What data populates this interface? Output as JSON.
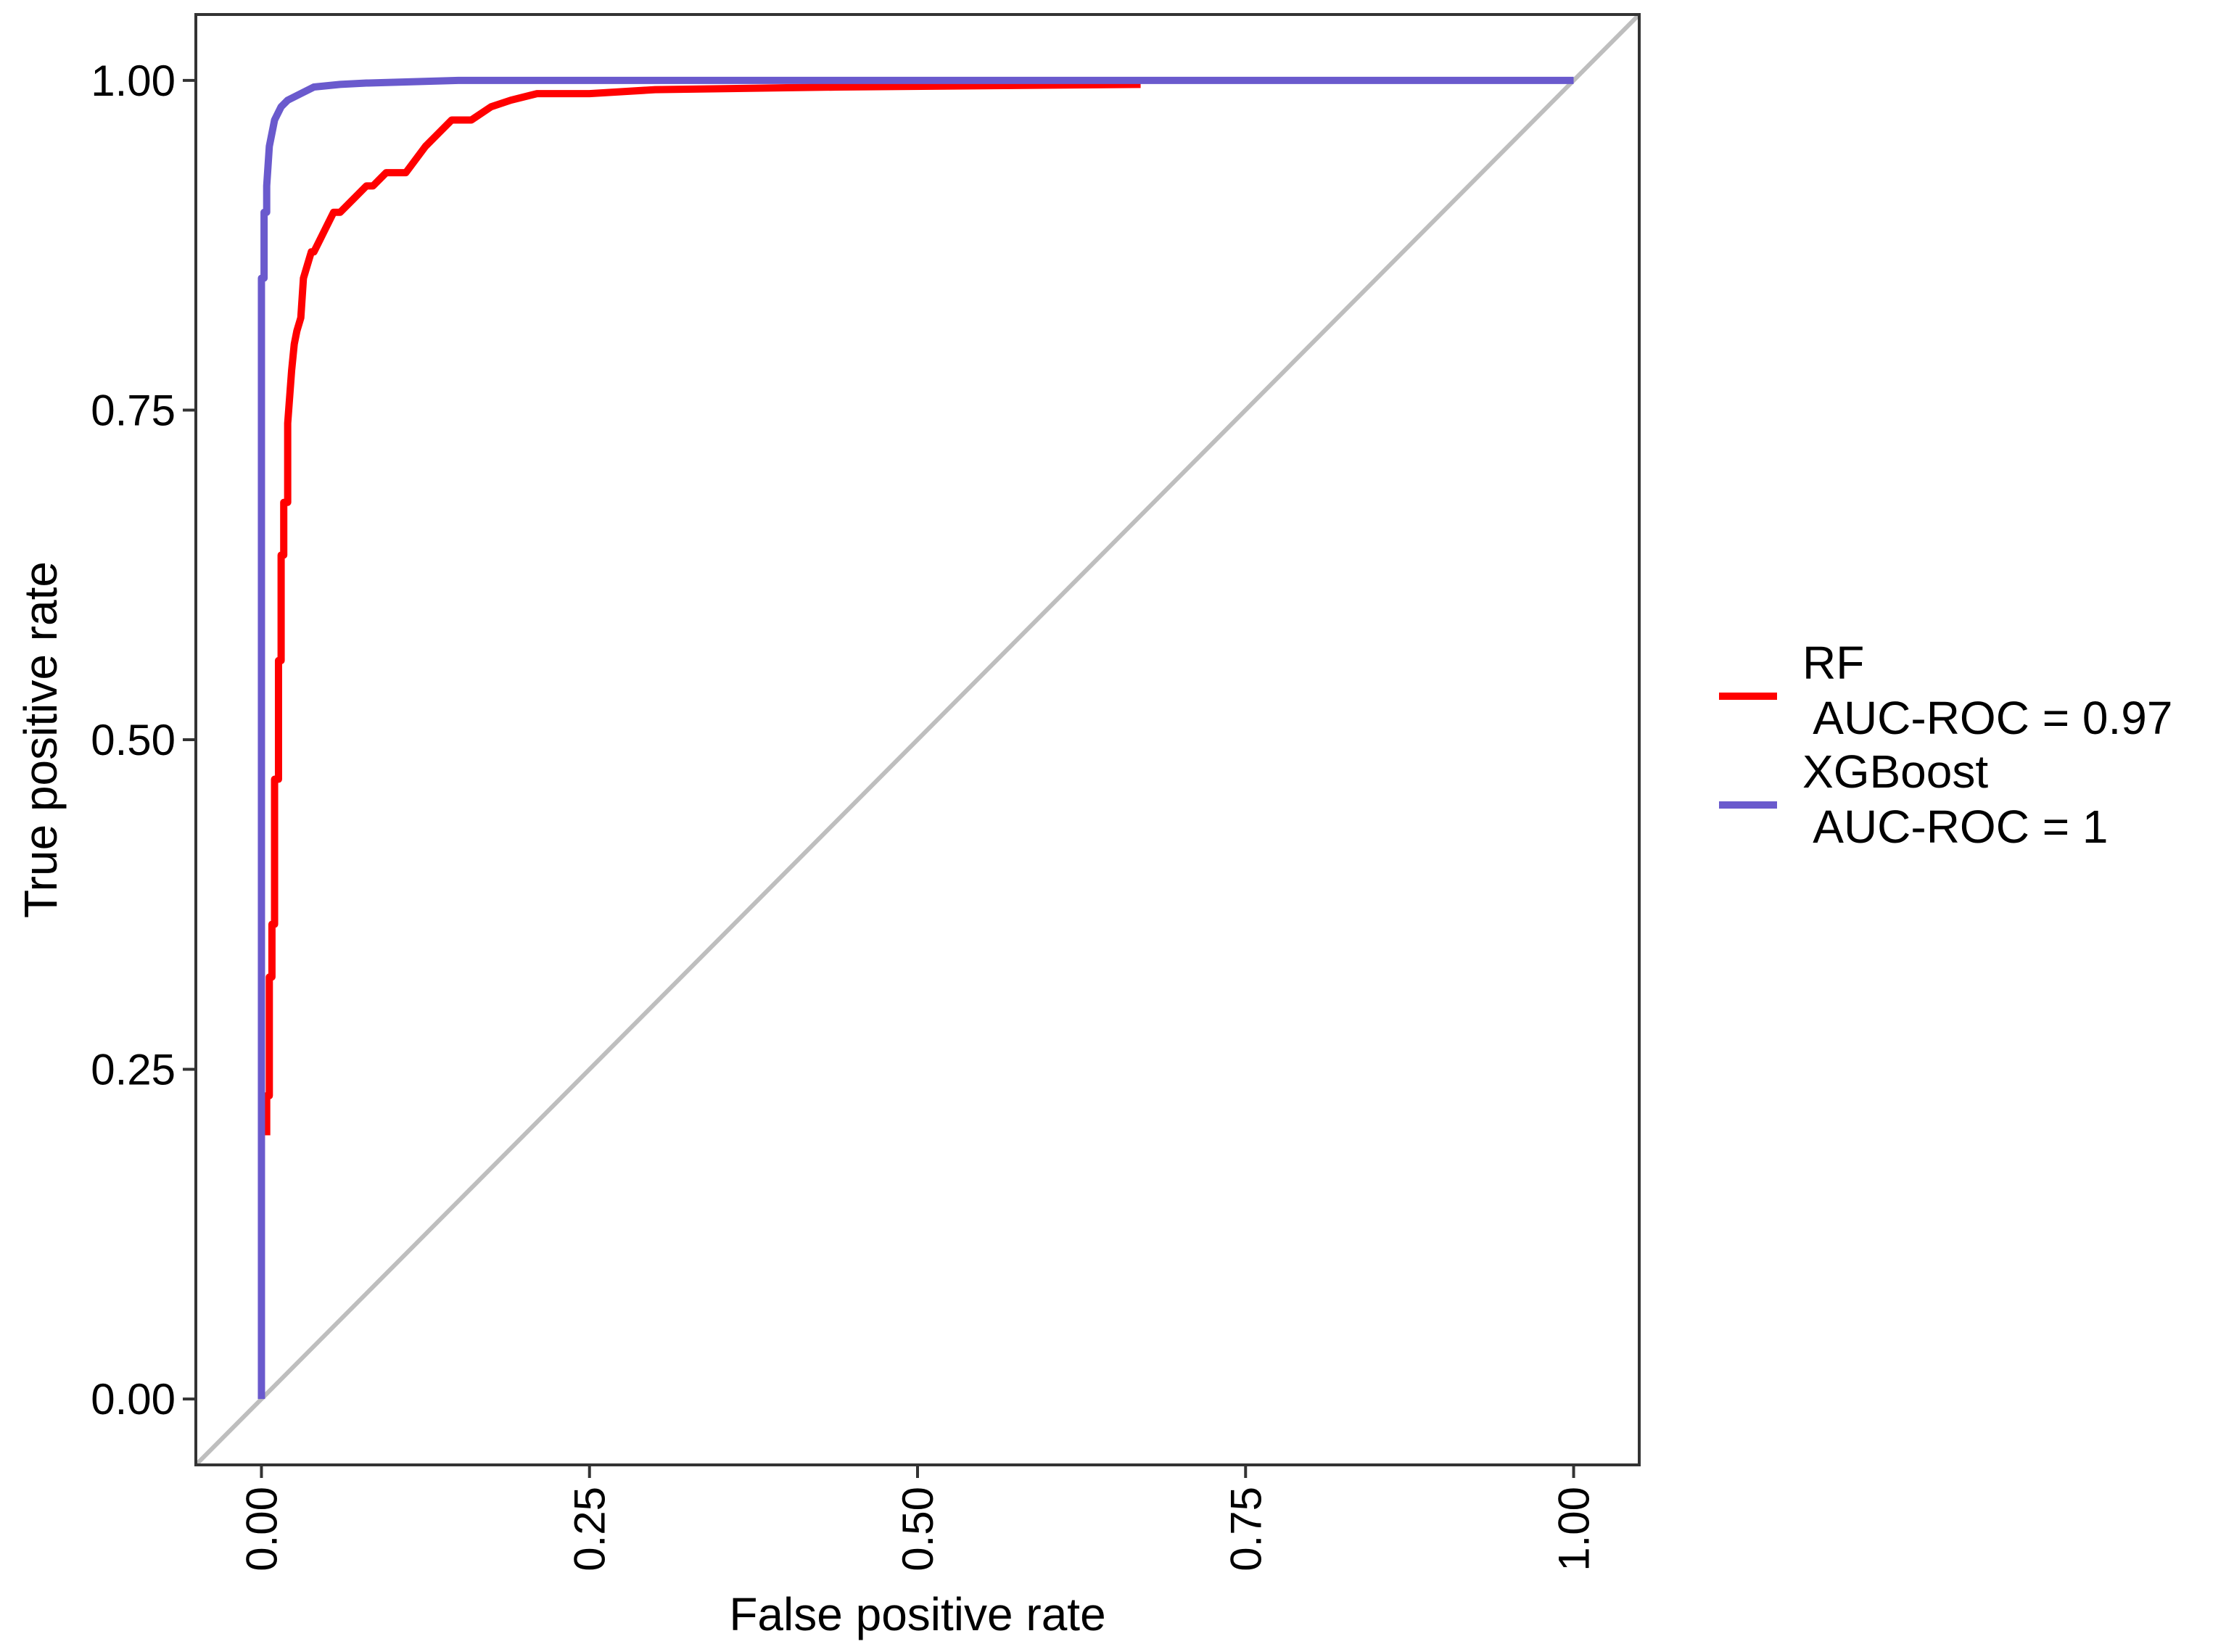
{
  "chart_data": {
    "type": "line",
    "title": "",
    "xlabel": "False positive rate",
    "ylabel": "True positive rate",
    "xlim": [
      -0.05,
      1.05
    ],
    "ylim": [
      -0.05,
      1.05
    ],
    "x_ticks": [
      "0.00",
      "0.25",
      "0.50",
      "0.75",
      "1.00"
    ],
    "y_ticks": [
      "0.00",
      "0.25",
      "0.50",
      "0.75",
      "1.00"
    ],
    "x_tick_rotation": "vertical",
    "grid": false,
    "legend_position": "right",
    "reference_line": {
      "x": [
        -0.05,
        1.05
      ],
      "y": [
        -0.05,
        1.05
      ],
      "color": "#BEBEBE"
    },
    "series": [
      {
        "name": "RF\n AUC-ROC = 0.97",
        "name_lines": [
          "RF",
          " AUC-ROC = 0.97"
        ],
        "color": "#FF0000",
        "x": [
          0.004,
          0.004,
          0.006,
          0.006,
          0.008,
          0.008,
          0.01,
          0.01,
          0.013,
          0.013,
          0.015,
          0.015,
          0.017,
          0.017,
          0.02,
          0.02,
          0.023,
          0.025,
          0.027,
          0.03,
          0.032,
          0.035,
          0.038,
          0.04,
          0.045,
          0.05,
          0.055,
          0.06,
          0.07,
          0.08,
          0.085,
          0.095,
          0.11,
          0.125,
          0.135,
          0.145,
          0.16,
          0.175,
          0.19,
          0.21,
          0.25,
          0.3,
          0.44,
          0.67
        ],
        "y": [
          0.2,
          0.23,
          0.23,
          0.32,
          0.32,
          0.36,
          0.36,
          0.47,
          0.47,
          0.56,
          0.56,
          0.64,
          0.64,
          0.68,
          0.68,
          0.74,
          0.78,
          0.8,
          0.81,
          0.82,
          0.85,
          0.86,
          0.87,
          0.87,
          0.88,
          0.89,
          0.9,
          0.9,
          0.91,
          0.92,
          0.92,
          0.93,
          0.93,
          0.95,
          0.96,
          0.97,
          0.97,
          0.98,
          0.985,
          0.99,
          0.99,
          0.993,
          0.995,
          0.997
        ]
      },
      {
        "name": "XGBoost\n AUC-ROC = 1",
        "name_lines": [
          "XGBoost",
          " AUC-ROC = 1"
        ],
        "color": "#6A5ACD",
        "x": [
          0.0,
          0.0,
          0.0,
          0.0,
          0.002,
          0.002,
          0.004,
          0.004,
          0.006,
          0.008,
          0.01,
          0.015,
          0.02,
          0.03,
          0.04,
          0.06,
          0.08,
          0.15,
          0.3,
          1.0
        ],
        "y": [
          0.0,
          0.2,
          0.5,
          0.85,
          0.85,
          0.9,
          0.9,
          0.92,
          0.95,
          0.96,
          0.97,
          0.98,
          0.985,
          0.99,
          0.995,
          0.997,
          0.998,
          1.0,
          1.0,
          1.0
        ]
      }
    ]
  }
}
